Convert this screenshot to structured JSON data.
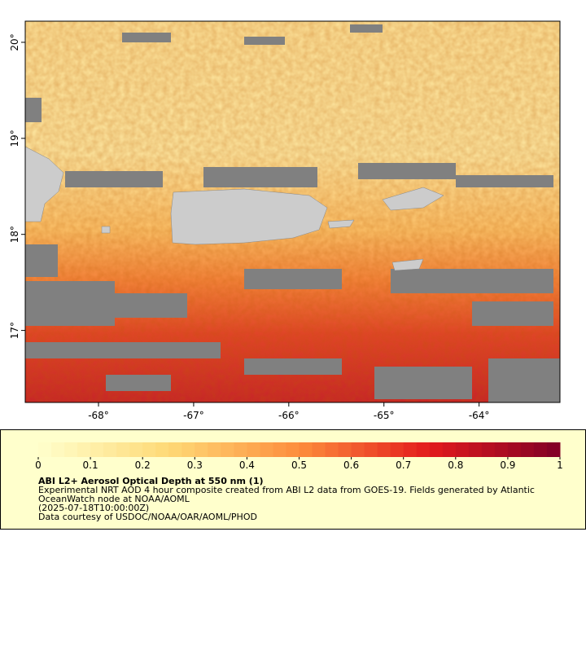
{
  "map": {
    "xlim": [
      -68.77,
      -63.15
    ],
    "ylim": [
      16.25,
      20.22
    ],
    "xticks": [
      {
        "value": -68,
        "label": "-68°"
      },
      {
        "value": -67,
        "label": "-67°"
      },
      {
        "value": -66,
        "label": "-66°"
      },
      {
        "value": -65,
        "label": "-65°"
      },
      {
        "value": -64,
        "label": "-64°"
      }
    ],
    "yticks": [
      {
        "value": 17,
        "label": "17°"
      },
      {
        "value": 18,
        "label": "18°"
      },
      {
        "value": 19,
        "label": "19°"
      },
      {
        "value": 20,
        "label": "20°"
      }
    ]
  },
  "colorbar": {
    "clim": [
      0,
      1
    ],
    "ticks": [
      0,
      0.1,
      0.2,
      0.3,
      0.4,
      0.5,
      0.6,
      0.7,
      0.8,
      0.9,
      1
    ]
  },
  "legend": {
    "title": "ABI L2+ Aerosol Optical Depth at 550 nm (1)",
    "lines": [
      "Experimental NRT AOD 4 hour composite created from ABI L2 data from GOES-19. Fields generated by Atlantic",
      "OceanWatch node at NOAA/AOML",
      "(2025-07-18T10:00:00Z)",
      "Data courtesy of USDOC/NOAA/OAR/AOML/PHOD"
    ]
  }
}
